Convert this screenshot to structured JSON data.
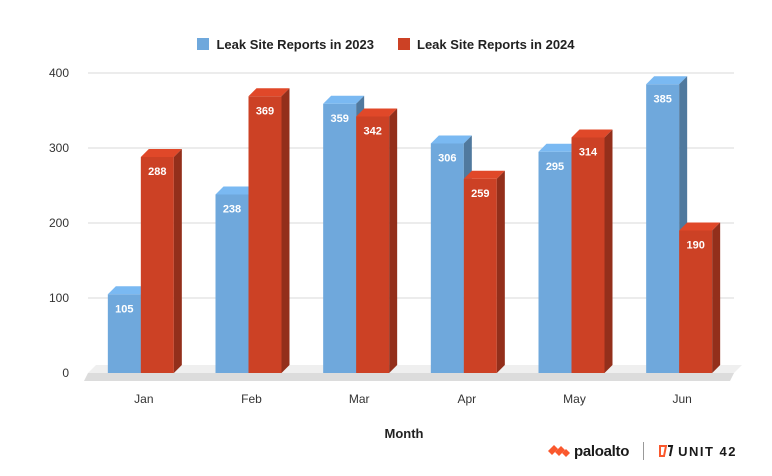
{
  "chart_data": {
    "type": "bar",
    "title": "",
    "xlabel": "Month",
    "ylabel": "",
    "categories": [
      "Jan",
      "Feb",
      "Mar",
      "Apr",
      "May",
      "Jun"
    ],
    "series": [
      {
        "name": "Leak Site Reports in 2023",
        "color": "#6fa8dc",
        "values": [
          105,
          238,
          359,
          306,
          295,
          385
        ]
      },
      {
        "name": "Leak Site Reports in 2024",
        "color": "#cc4125",
        "values": [
          288,
          369,
          342,
          259,
          314,
          190
        ]
      }
    ],
    "ylim": [
      0,
      400
    ],
    "yticks": [
      0,
      100,
      200,
      300,
      400
    ],
    "grid": true,
    "legend": "top-center",
    "style": "3d-bars",
    "data_labels": true
  },
  "footer": {
    "brand_left": "paloalto",
    "brand_right": "UNIT 42",
    "brand_left_color": "#fa582d",
    "brand_right_color": "#fa582d"
  }
}
